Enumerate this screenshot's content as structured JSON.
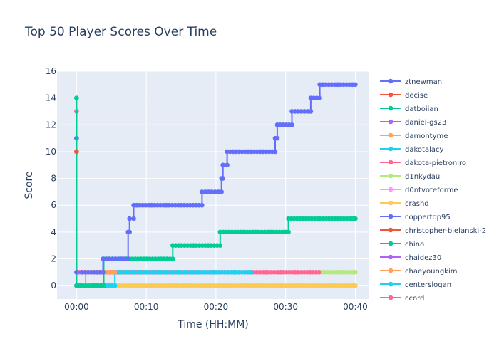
{
  "chart_data": {
    "type": "line",
    "title": "Top 50 Player Scores Over Time",
    "xlabel": "Time (HH:MM)",
    "ylabel": "Score",
    "xlim_minutes": [
      -2.8,
      42
    ],
    "ylim": [
      -1,
      16
    ],
    "x_ticks": [
      {
        "value": 0,
        "label": "00:00"
      },
      {
        "value": 10,
        "label": "00:10"
      },
      {
        "value": 20,
        "label": "00:20"
      },
      {
        "value": 30,
        "label": "00:30"
      },
      {
        "value": 40,
        "label": "00:40"
      }
    ],
    "y_ticks": [
      0,
      2,
      4,
      6,
      8,
      10,
      12,
      14,
      16
    ],
    "grid": true,
    "legend_position": "right",
    "series": [
      {
        "name": "ztnewman",
        "color": "#636efa",
        "x": [
          0,
          0.8,
          0.8,
          3.8,
          3.8,
          7.4,
          7.4,
          7.6,
          7.6,
          8.2,
          8.2,
          18.0,
          18.0,
          20.8,
          20.8,
          21.0,
          21.0,
          21.6,
          21.6,
          28.5,
          28.5,
          28.8,
          28.8,
          30.9,
          30.9,
          33.6,
          33.6,
          34.9,
          34.9,
          40.0
        ],
        "y": [
          1,
          1,
          1,
          1,
          2,
          2,
          4,
          4,
          5,
          5,
          6,
          6,
          7,
          7,
          8,
          8,
          9,
          9,
          10,
          10,
          11,
          11,
          12,
          12,
          13,
          13,
          14,
          14,
          15,
          15
        ]
      },
      {
        "name": "decise",
        "color": "#ef553b",
        "x": [
          0
        ],
        "y": [
          10
        ]
      },
      {
        "name": "datboiian",
        "color": "#00cc96",
        "x": [
          0,
          0,
          3.9,
          3.9,
          13.8,
          13.8,
          20.6,
          20.6,
          30.4,
          30.4,
          40.0
        ],
        "y": [
          14,
          0,
          0,
          2,
          2,
          3,
          3,
          4,
          4,
          5,
          5
        ]
      },
      {
        "name": "daniel-gs23",
        "color": "#ab63fa",
        "x": [
          0
        ],
        "y": [
          1
        ]
      },
      {
        "name": "damontyme",
        "color": "#ffa15a",
        "x": [
          0,
          1.3,
          1.3,
          5.5
        ],
        "y": [
          0,
          0,
          1,
          1
        ]
      },
      {
        "name": "dakotalacy",
        "color": "#19d3f3",
        "x": [
          0,
          5.5,
          5.5,
          25.0
        ],
        "y": [
          0,
          0,
          1,
          1
        ]
      },
      {
        "name": "dakota-pietroniro",
        "color": "#ff6692",
        "x": [
          0,
          0,
          25.0,
          34.8
        ],
        "y": [
          13,
          1,
          1,
          1
        ]
      },
      {
        "name": "d1nkydau",
        "color": "#b6e880",
        "x": [
          34.8,
          40.0
        ],
        "y": [
          1,
          1
        ]
      },
      {
        "name": "d0ntvoteforme",
        "color": "#ff97ff",
        "x": [
          0
        ],
        "y": [
          0
        ]
      },
      {
        "name": "crashd",
        "color": "#fecb52",
        "x": [
          0,
          40.0
        ],
        "y": [
          0,
          0
        ]
      },
      {
        "name": "coppertop95",
        "color": "#636efa",
        "x": [
          0
        ],
        "y": [
          11
        ]
      },
      {
        "name": "christopher-bielanski-2",
        "color": "#ef553b",
        "x": [
          0
        ],
        "y": [
          10
        ]
      },
      {
        "name": "chino",
        "color": "#00cc96",
        "x": [
          0
        ],
        "y": [
          14
        ]
      },
      {
        "name": "chaidez30",
        "color": "#ab63fa",
        "x": [
          0
        ],
        "y": [
          1
        ]
      },
      {
        "name": "chaeyoungkim",
        "color": "#ffa15a",
        "x": [
          0
        ],
        "y": [
          0
        ]
      },
      {
        "name": "centerslogan",
        "color": "#19d3f3",
        "x": [
          0
        ],
        "y": [
          0
        ]
      },
      {
        "name": "ccord",
        "color": "#ff6692",
        "x": [
          0
        ],
        "y": [
          13
        ]
      }
    ]
  }
}
